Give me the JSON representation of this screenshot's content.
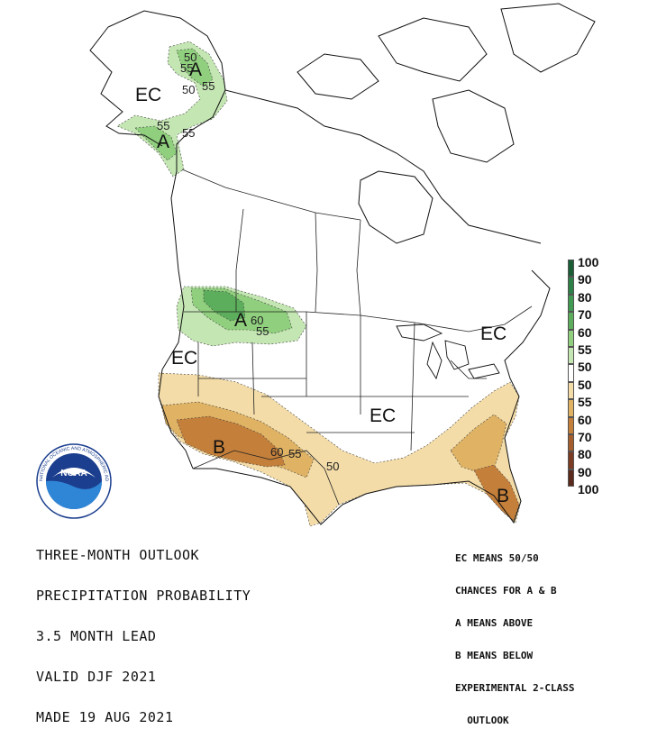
{
  "title_lines": [
    "THREE-MONTH OUTLOOK",
    "PRECIPITATION PROBABILITY",
    "3.5 MONTH LEAD",
    "VALID DJF 2021",
    "MADE 19 AUG 2021"
  ],
  "notes_lines": [
    "EC MEANS 50/50",
    "CHANCES FOR A & B",
    "A MEANS ABOVE",
    "B MEANS BELOW",
    "EXPERIMENTAL 2-CLASS",
    "  OUTLOOK"
  ],
  "legend": {
    "labels": [
      "100",
      "90",
      "80",
      "70",
      "60",
      "55",
      "50",
      "50",
      "55",
      "60",
      "70",
      "80",
      "90",
      "100"
    ],
    "colors": [
      "#1a5e35",
      "#2e8049",
      "#3f9a52",
      "#5cae5c",
      "#8fcf7d",
      "#c4e6b3",
      "#ffffff",
      "#f3dca8",
      "#dfb264",
      "#c47f3a",
      "#a45d2c",
      "#7c3c24",
      "#5c2a1c"
    ]
  },
  "map_labels": {
    "ec_alaska": "EC",
    "a_alaska_north": "A",
    "a_alaska_south": "A",
    "ec_west": "EC",
    "a_northwest": "A",
    "ec_northeast": "EC",
    "ec_central": "EC",
    "b_southwest": "B",
    "b_florida": "B"
  },
  "contour_labels": {
    "ak_50a": "50",
    "ak_55a": "55",
    "ak_50b": "50",
    "ak_55b": "55",
    "ak_55c": "55",
    "ak_55d": "55",
    "nw_60": "60",
    "nw_55": "55",
    "sw_60": "60",
    "sw_55": "55",
    "sw_50": "50"
  },
  "logo": {
    "text": "NOAA",
    "ring_text": "NATIONAL OCEANIC AND ATMOSPHERIC ADMINISTRATION"
  },
  "colors": {
    "above_55": "#c4e6b3",
    "above_60": "#8fcf7d",
    "above_70": "#5cae5c",
    "below_55": "#f3dca8",
    "below_60": "#dfb264",
    "below_70": "#c47f3a",
    "below_80": "#a45d2c"
  }
}
